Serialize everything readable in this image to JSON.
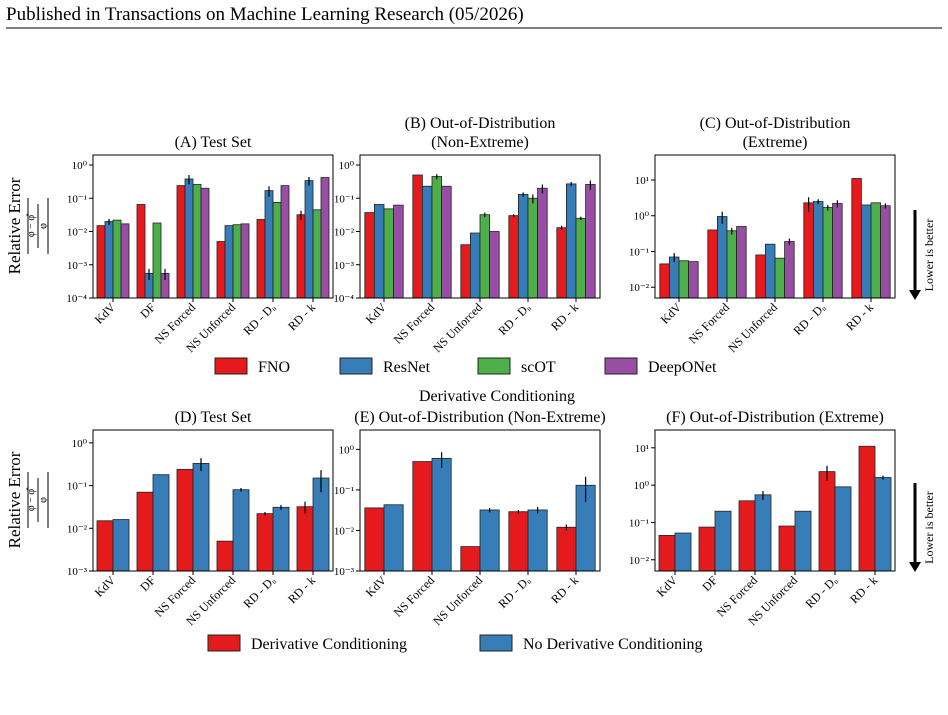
{
  "header": "Published in Transactions on Machine Learning Research (05/2026)",
  "y_label": "Relative Error",
  "y_formula": {
    "numerator": "φ − φ̂",
    "denominator": "φ"
  },
  "note": "Lower is better",
  "group_title": "Derivative Conditioning",
  "chart_data": [
    {
      "type": "bar",
      "title": [
        "(A) Test Set"
      ],
      "log_scale": true,
      "categories": [
        "KdV",
        "DF",
        "NS Forced",
        "NS Unforced",
        "RD - Dᵤ",
        "RD - k"
      ],
      "ylim": [
        0.0001,
        2
      ],
      "yticks": [
        {
          "value": 0.0001,
          "label": "10⁻⁴"
        },
        {
          "value": 0.001,
          "label": "10⁻³"
        },
        {
          "value": 0.01,
          "label": "10⁻²"
        },
        {
          "value": 0.1,
          "label": "10⁻¹"
        },
        {
          "value": 1,
          "label": "10⁰"
        }
      ],
      "series": [
        {
          "name": "FNO",
          "color": "#e41a1c",
          "values": [
            0.015,
            0.065,
            0.24,
            0.005,
            0.023,
            0.032
          ],
          "errors": [
            null,
            null,
            null,
            null,
            null,
            0.01
          ]
        },
        {
          "name": "ResNet",
          "color": "#377eb8",
          "values": [
            0.02,
            0.00055,
            0.38,
            0.015,
            0.17,
            0.34
          ],
          "errors": [
            0.004,
            0.0002,
            0.12,
            null,
            0.06,
            0.1
          ]
        },
        {
          "name": "scOT",
          "color": "#4daf4a",
          "values": [
            0.022,
            0.018,
            0.26,
            0.016,
            0.075,
            0.045
          ],
          "errors": [
            null,
            null,
            null,
            null,
            null,
            null
          ]
        },
        {
          "name": "DeepONet",
          "color": "#984ea3",
          "values": [
            0.017,
            0.00055,
            0.2,
            0.017,
            0.24,
            0.42
          ],
          "errors": [
            null,
            0.0002,
            null,
            null,
            null,
            null
          ]
        }
      ]
    },
    {
      "type": "bar",
      "title": [
        "(B) Out-of-Distribution",
        "(Non-Extreme)"
      ],
      "log_scale": true,
      "categories": [
        "KdV",
        "NS Forced",
        "NS Unforced",
        "RD - Dᵤ",
        "RD - k"
      ],
      "ylim": [
        0.0001,
        2
      ],
      "yticks": [
        {
          "value": 0.0001,
          "label": "10⁻⁴"
        },
        {
          "value": 0.001,
          "label": "10⁻³"
        },
        {
          "value": 0.01,
          "label": "10⁻²"
        },
        {
          "value": 0.1,
          "label": "10⁻¹"
        },
        {
          "value": 1,
          "label": "10⁰"
        }
      ],
      "series": [
        {
          "name": "FNO",
          "color": "#e41a1c",
          "values": [
            0.037,
            0.5,
            0.004,
            0.03,
            0.013
          ],
          "errors": [
            null,
            null,
            null,
            0.003,
            0.002
          ]
        },
        {
          "name": "ResNet",
          "color": "#377eb8",
          "values": [
            0.065,
            0.23,
            0.009,
            0.13,
            0.27
          ],
          "errors": [
            null,
            null,
            null,
            0.02,
            0.04
          ]
        },
        {
          "name": "scOT",
          "color": "#4daf4a",
          "values": [
            0.048,
            0.45,
            0.032,
            0.1,
            0.025
          ],
          "errors": [
            null,
            0.08,
            0.005,
            0.03,
            0.003
          ]
        },
        {
          "name": "DeepONet",
          "color": "#984ea3",
          "values": [
            0.062,
            0.23,
            0.01,
            0.2,
            0.26
          ],
          "errors": [
            null,
            null,
            null,
            0.06,
            0.08
          ]
        }
      ]
    },
    {
      "type": "bar",
      "title": [
        "(C) Out-of-Distribution",
        "(Extreme)"
      ],
      "log_scale": true,
      "categories": [
        "KdV",
        "NS Forced",
        "NS Unforced",
        "RD - Dᵤ",
        "RD - k"
      ],
      "ylim": [
        0.005,
        50
      ],
      "yticks": [
        {
          "value": 0.01,
          "label": "10⁻²"
        },
        {
          "value": 0.1,
          "label": "10⁻¹"
        },
        {
          "value": 1,
          "label": "10⁰"
        },
        {
          "value": 10,
          "label": "10¹"
        }
      ],
      "series": [
        {
          "name": "FNO",
          "color": "#e41a1c",
          "values": [
            0.045,
            0.4,
            0.08,
            2.3,
            11
          ],
          "errors": [
            null,
            null,
            null,
            1,
            null
          ]
        },
        {
          "name": "ResNet",
          "color": "#377eb8",
          "values": [
            0.07,
            0.95,
            0.16,
            2.5,
            2
          ],
          "errors": [
            0.02,
            0.35,
            null,
            0.4,
            null
          ]
        },
        {
          "name": "scOT",
          "color": "#4daf4a",
          "values": [
            0.055,
            0.38,
            0.065,
            1.7,
            2.3
          ],
          "errors": [
            null,
            0.08,
            null,
            0.3,
            null
          ]
        },
        {
          "name": "DeepONet",
          "color": "#984ea3",
          "values": [
            0.052,
            0.5,
            0.19,
            2.2,
            1.9
          ],
          "errors": [
            null,
            null,
            0.04,
            0.5,
            0.3
          ]
        }
      ]
    },
    {
      "type": "bar",
      "title": [
        "(D) Test Set"
      ],
      "log_scale": true,
      "categories": [
        "KdV",
        "DF",
        "NS Forced",
        "NS Unforced",
        "RD - Dᵤ",
        "RD - k"
      ],
      "ylim": [
        0.001,
        2
      ],
      "yticks": [
        {
          "value": 0.001,
          "label": "10⁻³"
        },
        {
          "value": 0.01,
          "label": "10⁻²"
        },
        {
          "value": 0.1,
          "label": "10⁻¹"
        },
        {
          "value": 1,
          "label": "10⁰"
        }
      ],
      "series": [
        {
          "name": "Derivative Conditioning",
          "color": "#e41a1c",
          "values": [
            0.015,
            0.07,
            0.24,
            0.005,
            0.022,
            0.032
          ],
          "errors": [
            null,
            null,
            null,
            null,
            0.002,
            0.01
          ]
        },
        {
          "name": "No Derivative Conditioning",
          "color": "#377eb8",
          "values": [
            0.016,
            0.18,
            0.33,
            0.08,
            0.031,
            0.15
          ],
          "errors": [
            null,
            null,
            0.11,
            0.008,
            0.004,
            0.08
          ]
        }
      ]
    },
    {
      "type": "bar",
      "title": [
        "(E) Out-of-Distribution (Non-Extreme)"
      ],
      "log_scale": true,
      "categories": [
        "KdV",
        "NS Forced",
        "NS Unforced",
        "RD - Dᵤ",
        "RD - k"
      ],
      "ylim": [
        0.001,
        3
      ],
      "yticks": [
        {
          "value": 0.001,
          "label": "10⁻³"
        },
        {
          "value": 0.01,
          "label": "10⁻²"
        },
        {
          "value": 0.1,
          "label": "10⁻¹"
        },
        {
          "value": 1,
          "label": "10⁰"
        }
      ],
      "series": [
        {
          "name": "Derivative Conditioning",
          "color": "#e41a1c",
          "values": [
            0.036,
            0.5,
            0.004,
            0.029,
            0.012
          ],
          "errors": [
            null,
            null,
            null,
            0.003,
            0.002
          ]
        },
        {
          "name": "No Derivative Conditioning",
          "color": "#377eb8",
          "values": [
            0.043,
            0.6,
            0.032,
            0.032,
            0.13
          ],
          "errors": [
            null,
            0.25,
            0.004,
            0.006,
            0.08
          ]
        }
      ]
    },
    {
      "type": "bar",
      "title": [
        "(F) Out-of-Distribution (Extreme)"
      ],
      "log_scale": true,
      "categories": [
        "KdV",
        "DF",
        "NS Forced",
        "NS Unforced",
        "RD - Dᵤ",
        "RD - k"
      ],
      "ylim": [
        0.005,
        30
      ],
      "yticks": [
        {
          "value": 0.01,
          "label": "10⁻²"
        },
        {
          "value": 0.1,
          "label": "10⁻¹"
        },
        {
          "value": 1,
          "label": "10⁰"
        },
        {
          "value": 10,
          "label": "10¹"
        }
      ],
      "series": [
        {
          "name": "Derivative Conditioning",
          "color": "#e41a1c",
          "values": [
            0.045,
            0.075,
            0.38,
            0.08,
            2.3,
            11
          ],
          "errors": [
            null,
            null,
            null,
            null,
            1,
            null
          ]
        },
        {
          "name": "No Derivative Conditioning",
          "color": "#377eb8",
          "values": [
            0.052,
            0.2,
            0.55,
            0.2,
            0.9,
            1.6
          ],
          "errors": [
            null,
            null,
            0.15,
            null,
            null,
            0.2
          ]
        }
      ]
    }
  ]
}
